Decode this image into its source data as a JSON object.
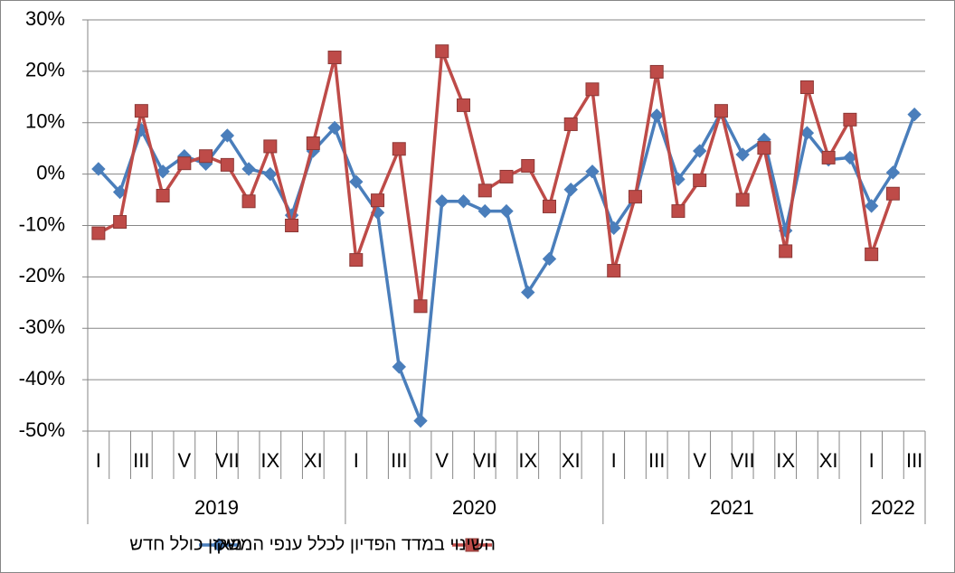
{
  "chart_data": {
    "type": "line",
    "categories": [
      "I",
      null,
      "III",
      null,
      "V",
      null,
      "VII",
      null,
      "IX",
      null,
      "XI",
      null,
      "I",
      null,
      "III",
      null,
      "V",
      null,
      "VII",
      null,
      "IX",
      null,
      "XI",
      null,
      "I",
      null,
      "III",
      null,
      "V",
      null,
      "VII",
      null,
      "IX",
      null,
      "XI",
      null,
      "I",
      null,
      "III"
    ],
    "x_groups": [
      "2019",
      "2020",
      "2021",
      "2022"
    ],
    "series": [
      {
        "name": "מאזן כולל חדש",
        "color": "#4a7ebb",
        "marker": "diamond",
        "values": [
          1,
          -3.5,
          8.6,
          0.5,
          3.5,
          2,
          7.5,
          1,
          0,
          -8,
          4.5,
          9,
          -1.5,
          -7.5,
          -37.5,
          -48,
          -5.3,
          -5.3,
          -7.2,
          -7.2,
          -23,
          -16.5,
          -3,
          0.5,
          -10.5,
          -4.4,
          11.4,
          -1,
          4.5,
          12,
          3.8,
          6.7,
          -11,
          8,
          2.8,
          3.2,
          -6.2,
          0.3,
          11.6
        ]
      },
      {
        "name": "השינוי במדד הפדיון לכלל ענפי המשק",
        "color": "#be4b48",
        "marker": "square",
        "values": [
          -11.5,
          -9.3,
          12.3,
          -4.2,
          2.1,
          3.5,
          1.8,
          -5.3,
          5.4,
          -10,
          6,
          22.7,
          -16.7,
          -5.1,
          4.9,
          -25.7,
          23.9,
          13.4,
          -3.2,
          -0.5,
          1.6,
          -6.3,
          9.7,
          16.5,
          -18.8,
          -4.4,
          19.9,
          -7.2,
          -1.2,
          12.3,
          -5,
          5.1,
          -15,
          16.9,
          3.2,
          10.6,
          -15.6,
          -3.8,
          null
        ]
      }
    ],
    "ylim": [
      -50,
      30
    ],
    "yticks": [
      {
        "value": -50,
        "label": "-50%"
      },
      {
        "value": -40,
        "label": "-40%"
      },
      {
        "value": -30,
        "label": "-30%"
      },
      {
        "value": -20,
        "label": "-20%"
      },
      {
        "value": -10,
        "label": "-10%"
      },
      {
        "value": 0,
        "label": "0%"
      },
      {
        "value": 10,
        "label": "10%"
      },
      {
        "value": 20,
        "label": "20%"
      },
      {
        "value": 30,
        "label": "30%"
      }
    ],
    "grid": true,
    "legend": "bottom"
  }
}
